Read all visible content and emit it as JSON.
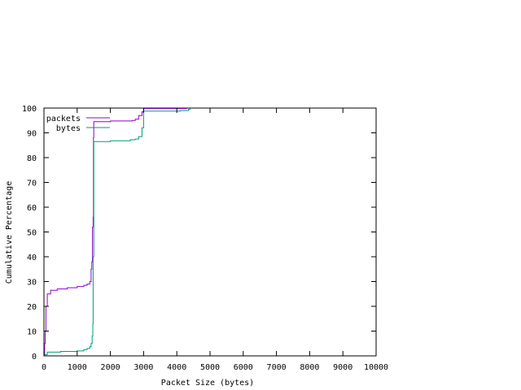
{
  "chart_data": {
    "type": "line",
    "title": "",
    "xlabel": "Packet Size (bytes)",
    "ylabel": "Cumulative Percentage",
    "xlim": [
      0,
      10000
    ],
    "ylim": [
      0,
      100
    ],
    "x_ticks": [
      0,
      1000,
      2000,
      3000,
      4000,
      5000,
      6000,
      7000,
      8000,
      9000,
      10000
    ],
    "y_ticks": [
      0,
      10,
      20,
      30,
      40,
      50,
      60,
      70,
      80,
      90,
      100
    ],
    "grid": false,
    "legend_position": "top-left",
    "series": [
      {
        "name": "packets",
        "color": "#9400d3",
        "points": [
          [
            0,
            0
          ],
          [
            20,
            5
          ],
          [
            40,
            10
          ],
          [
            60,
            20
          ],
          [
            100,
            25
          ],
          [
            200,
            26.5
          ],
          [
            400,
            27
          ],
          [
            700,
            27.5
          ],
          [
            1000,
            28
          ],
          [
            1200,
            28.5
          ],
          [
            1300,
            29
          ],
          [
            1380,
            30
          ],
          [
            1420,
            35
          ],
          [
            1440,
            38
          ],
          [
            1460,
            52
          ],
          [
            1480,
            56
          ],
          [
            1490,
            88
          ],
          [
            1500,
            94.5
          ],
          [
            2000,
            94.8
          ],
          [
            2650,
            95
          ],
          [
            2750,
            95.5
          ],
          [
            2850,
            97
          ],
          [
            2950,
            98.5
          ],
          [
            3000,
            99.8
          ],
          [
            4300,
            100
          ]
        ]
      },
      {
        "name": "bytes",
        "color": "#009e73",
        "points": [
          [
            0,
            0
          ],
          [
            10,
            0.5
          ],
          [
            100,
            1.5
          ],
          [
            500,
            1.8
          ],
          [
            1000,
            2
          ],
          [
            1200,
            2.5
          ],
          [
            1300,
            3
          ],
          [
            1380,
            3.8
          ],
          [
            1420,
            5
          ],
          [
            1450,
            8
          ],
          [
            1470,
            13
          ],
          [
            1480,
            40
          ],
          [
            1500,
            86.5
          ],
          [
            2000,
            86.8
          ],
          [
            2600,
            87.2
          ],
          [
            2750,
            87.5
          ],
          [
            2850,
            88.5
          ],
          [
            2950,
            92
          ],
          [
            3000,
            98.8
          ],
          [
            4100,
            99
          ],
          [
            4350,
            99.5
          ],
          [
            4400,
            100
          ]
        ]
      }
    ]
  }
}
